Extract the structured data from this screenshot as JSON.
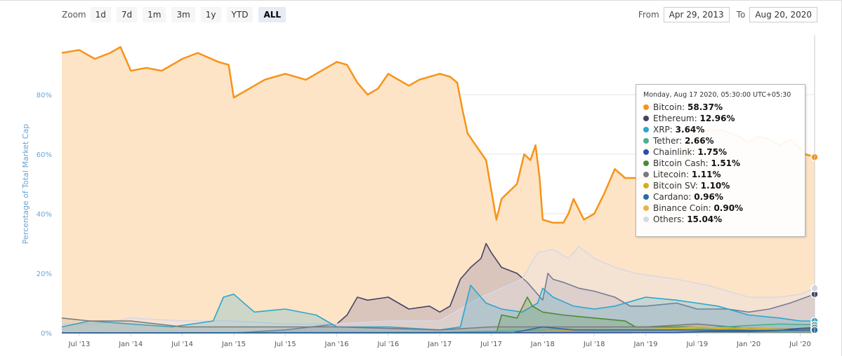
{
  "toolbar": {
    "zoom_label": "Zoom",
    "zoom_buttons": [
      "1d",
      "7d",
      "1m",
      "3m",
      "1y",
      "YTD",
      "ALL"
    ],
    "active_zoom": "ALL",
    "from_label": "From",
    "from_value": "Apr 29, 2013",
    "to_label": "To",
    "to_value": "Aug 20, 2020"
  },
  "tooltip": {
    "date": "Monday, Aug 17 2020, 05:30:00 UTC+05:30",
    "items": [
      {
        "name": "Bitcoin",
        "value": "58.37%",
        "color": "#f7931a"
      },
      {
        "name": "Ethereum",
        "value": "12.96%",
        "color": "#434366"
      },
      {
        "name": "XRP",
        "value": "3.64%",
        "color": "#2ba6cf"
      },
      {
        "name": "Tether",
        "value": "2.66%",
        "color": "#4caf91"
      },
      {
        "name": "Chainlink",
        "value": "1.75%",
        "color": "#2e4ea6"
      },
      {
        "name": "Bitcoin Cash",
        "value": "1.51%",
        "color": "#4a8c2f"
      },
      {
        "name": "Litecoin",
        "value": "1.11%",
        "color": "#7a7a7a"
      },
      {
        "name": "Bitcoin SV",
        "value": "1.10%",
        "color": "#d4b020"
      },
      {
        "name": "Cardano",
        "value": "0.96%",
        "color": "#2a6aa6"
      },
      {
        "name": "Binance Coin",
        "value": "0.90%",
        "color": "#e8b34a"
      },
      {
        "name": "Others",
        "value": "15.04%",
        "color": "#d9d9e6"
      }
    ]
  },
  "chart_data": {
    "type": "area",
    "ylabel": "Percentage of Total Market Cap",
    "ylim": [
      0,
      100
    ],
    "y_ticks": [
      "0%",
      "20%",
      "40%",
      "60%",
      "80%"
    ],
    "x_ticks": [
      "Jul '13",
      "Jan '14",
      "Jul '14",
      "Jan '15",
      "Jul '15",
      "Jan '16",
      "Jul '16",
      "Jan '17",
      "Jul '17",
      "Jan '18",
      "Jul '18",
      "Jan '19",
      "Jul '19",
      "Jan '20",
      "Jul '20"
    ],
    "x_range": [
      2013.33,
      2020.64
    ],
    "series": [
      {
        "name": "Bitcoin",
        "color": "#f7931a",
        "fill": "#fde4c6",
        "x": [
          2013.33,
          2013.5,
          2013.65,
          2013.8,
          2013.9,
          2014.0,
          2014.15,
          2014.3,
          2014.5,
          2014.65,
          2014.85,
          2014.95,
          2015.0,
          2015.05,
          2015.3,
          2015.5,
          2015.7,
          2015.9,
          2016.0,
          2016.1,
          2016.2,
          2016.3,
          2016.4,
          2016.5,
          2016.6,
          2016.7,
          2016.8,
          2017.0,
          2017.1,
          2017.17,
          2017.22,
          2017.27,
          2017.35,
          2017.45,
          2017.5,
          2017.55,
          2017.6,
          2017.75,
          2017.82,
          2017.88,
          2017.93,
          2017.97,
          2018.0,
          2018.1,
          2018.2,
          2018.25,
          2018.3,
          2018.4,
          2018.5,
          2018.6,
          2018.7,
          2018.8,
          2018.95,
          2019.05,
          2019.2,
          2019.3,
          2019.42,
          2019.5,
          2019.6,
          2019.75,
          2019.9,
          2020.0,
          2020.1,
          2020.2,
          2020.3,
          2020.4,
          2020.5,
          2020.55,
          2020.64
        ],
        "y": [
          94,
          95,
          92,
          94,
          96,
          88,
          89,
          88,
          92,
          94,
          91,
          90,
          79,
          80,
          85,
          87,
          85,
          89,
          91,
          90,
          84,
          80,
          82,
          87,
          85,
          83,
          85,
          87,
          86,
          84,
          75,
          67,
          63,
          58,
          48,
          38,
          45,
          50,
          60,
          58,
          63,
          52,
          38,
          37,
          37,
          40,
          45,
          38,
          40,
          47,
          55,
          52,
          52,
          52,
          55,
          57,
          64,
          67,
          68,
          68,
          66,
          64,
          66,
          65,
          63,
          65,
          62,
          60,
          59
        ]
      },
      {
        "name": "Ethereum",
        "color": "#434366",
        "fill": "rgba(150,140,170,0.35)",
        "x": [
          2013.33,
          2014.0,
          2014.5,
          2015.0,
          2015.5,
          2016.0,
          2016.1,
          2016.2,
          2016.3,
          2016.5,
          2016.7,
          2016.9,
          2017.0,
          2017.1,
          2017.2,
          2017.3,
          2017.4,
          2017.45,
          2017.5,
          2017.6,
          2017.75,
          2017.85,
          2017.95,
          2018.0,
          2018.05,
          2018.1,
          2018.2,
          2018.35,
          2018.5,
          2018.7,
          2018.85,
          2019.0,
          2019.3,
          2019.5,
          2019.8,
          2020.0,
          2020.2,
          2020.4,
          2020.64
        ],
        "y": [
          0,
          0,
          0,
          0,
          1,
          3,
          6,
          12,
          11,
          12,
          8,
          9,
          7,
          9,
          18,
          22,
          25,
          30,
          27,
          22,
          20,
          17,
          13,
          11,
          20,
          18,
          17,
          15,
          14,
          12,
          9,
          9,
          10,
          8,
          8,
          7,
          8,
          10,
          13
        ]
      },
      {
        "name": "Others",
        "color": "#d8d8e4",
        "fill": "rgba(225,225,235,0.35)",
        "x": [
          2013.33,
          2013.7,
          2014.0,
          2014.5,
          2015.0,
          2015.5,
          2016.0,
          2016.5,
          2017.0,
          2017.2,
          2017.4,
          2017.6,
          2017.8,
          2017.95,
          2018.1,
          2018.25,
          2018.35,
          2018.5,
          2018.7,
          2018.9,
          2019.1,
          2019.3,
          2019.6,
          2019.8,
          2020.0,
          2020.3,
          2020.5,
          2020.64
        ],
        "y": [
          3,
          3,
          5,
          4,
          4,
          3,
          3,
          4,
          4,
          8,
          12,
          15,
          18,
          27,
          28,
          25,
          29,
          25,
          22,
          20,
          19,
          18,
          16,
          14,
          12,
          12,
          13,
          15
        ]
      },
      {
        "name": "XRP",
        "color": "#2ba6cf",
        "fill": "rgba(43,166,207,0.22)",
        "x": [
          2013.33,
          2013.6,
          2014.0,
          2014.4,
          2014.8,
          2014.9,
          2015.0,
          2015.2,
          2015.5,
          2015.8,
          2016.0,
          2016.5,
          2017.0,
          2017.2,
          2017.3,
          2017.35,
          2017.45,
          2017.6,
          2017.8,
          2017.95,
          2018.0,
          2018.1,
          2018.3,
          2018.5,
          2018.7,
          2018.9,
          2019.0,
          2019.3,
          2019.5,
          2019.7,
          2020.0,
          2020.3,
          2020.5,
          2020.64
        ],
        "y": [
          2,
          4,
          3,
          2,
          4,
          12,
          13,
          7,
          8,
          6,
          2,
          2,
          1,
          2,
          16,
          14,
          10,
          8,
          7,
          10,
          15,
          12,
          9,
          8,
          9,
          11,
          12,
          11,
          10,
          9,
          6,
          5,
          4,
          4
        ]
      },
      {
        "name": "Bitcoin Cash",
        "color": "#4a8c2f",
        "fill": "rgba(74,140,47,0.2)",
        "x": [
          2013.33,
          2017.55,
          2017.6,
          2017.75,
          2017.85,
          2017.9,
          2018.0,
          2018.2,
          2018.5,
          2018.8,
          2018.9,
          2019.5,
          2020.0,
          2020.64
        ],
        "y": [
          0,
          0,
          6,
          5,
          12,
          9,
          7,
          6,
          5,
          4,
          2,
          2,
          1,
          1.5
        ]
      },
      {
        "name": "Litecoin",
        "color": "#7a7a7a",
        "fill": "rgba(140,140,140,0.18)",
        "x": [
          2013.33,
          2013.6,
          2014.0,
          2014.5,
          2015.0,
          2016.0,
          2017.0,
          2017.5,
          2018.0,
          2019.0,
          2019.5,
          2020.0,
          2020.64
        ],
        "y": [
          5,
          4,
          4,
          2,
          2,
          2,
          1,
          2,
          2,
          2,
          3,
          1.5,
          1.1
        ]
      },
      {
        "name": "Tether",
        "color": "#4caf91",
        "fill": "rgba(76,175,145,0.15)",
        "x": [
          2013.33,
          2017.0,
          2018.0,
          2019.0,
          2019.5,
          2020.0,
          2020.3,
          2020.64
        ],
        "y": [
          0,
          0.2,
          0.8,
          1,
          1.5,
          2.5,
          3,
          2.7
        ]
      },
      {
        "name": "Binance Coin",
        "color": "#e8b34a",
        "fill": "rgba(232,179,74,0.18)",
        "x": [
          2013.33,
          2017.5,
          2018.0,
          2018.5,
          2019.0,
          2019.5,
          2020.0,
          2020.64
        ],
        "y": [
          0,
          0,
          0.6,
          1,
          1,
          2,
          1.3,
          0.9
        ]
      },
      {
        "name": "Bitcoin SV",
        "color": "#d4b020",
        "fill": "rgba(212,176,32,0.15)",
        "x": [
          2013.33,
          2018.85,
          2019.0,
          2019.3,
          2019.6,
          2020.0,
          2020.3,
          2020.64
        ],
        "y": [
          0,
          0,
          1,
          1.5,
          1.2,
          1.8,
          1.2,
          1.1
        ]
      },
      {
        "name": "Chainlink",
        "color": "#2e4ea6",
        "fill": "rgba(46,78,166,0.15)",
        "x": [
          2013.33,
          2019.3,
          2019.6,
          2020.0,
          2020.3,
          2020.5,
          2020.64
        ],
        "y": [
          0,
          0.1,
          0.5,
          0.5,
          0.8,
          1.5,
          1.75
        ]
      },
      {
        "name": "Cardano",
        "color": "#2a6aa6",
        "fill": "rgba(42,106,166,0.15)",
        "x": [
          2013.33,
          2017.7,
          2018.0,
          2018.3,
          2019.0,
          2019.5,
          2020.0,
          2020.64
        ],
        "y": [
          0,
          0,
          2,
          1,
          1,
          1,
          0.8,
          0.96
        ]
      }
    ]
  }
}
